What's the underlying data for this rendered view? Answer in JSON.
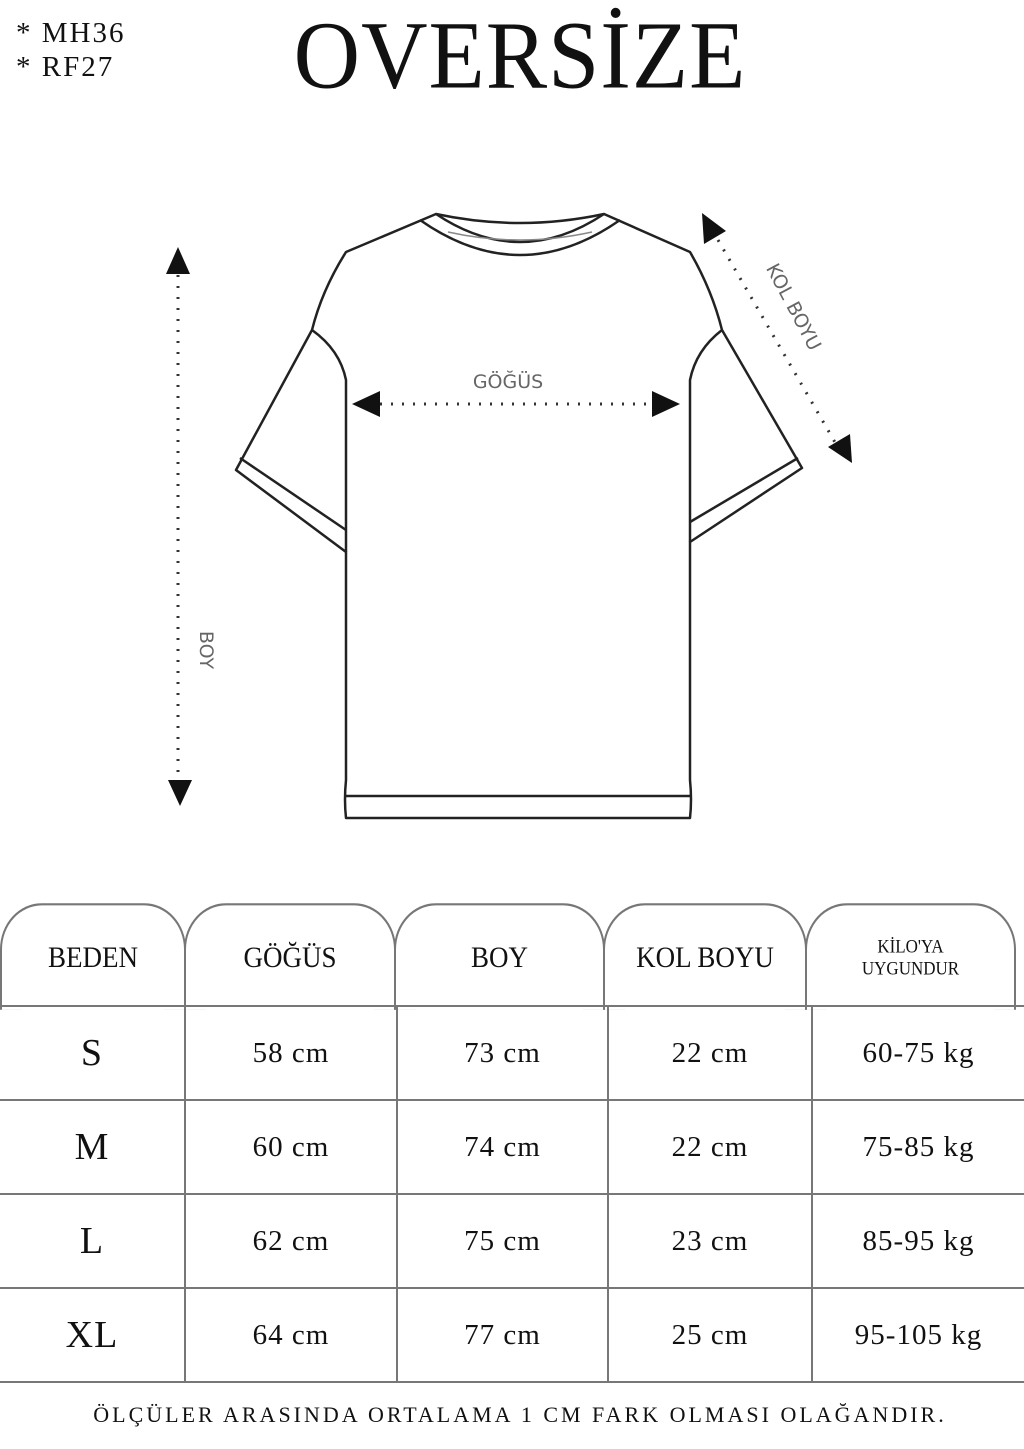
{
  "codes": [
    "* MH36",
    "* RF27"
  ],
  "title": "OVERSİZE",
  "diagram": {
    "chest_label": "GÖĞÜS",
    "length_label": "BOY",
    "sleeve_label": "KOL BOYU"
  },
  "table": {
    "headers": [
      "BEDEN",
      "GÖĞÜS",
      "BOY",
      "KOL BOYU",
      "KİLO'YA UYGUNDUR"
    ],
    "header_weight_lines": [
      "KİLO'YA",
      "UYGUNDUR"
    ],
    "rows": [
      [
        "S",
        "58 cm",
        "73 cm",
        "22  cm",
        "60-75 kg"
      ],
      [
        "M",
        "60 cm",
        "74 cm",
        "22 cm",
        "75-85 kg"
      ],
      [
        "L",
        "62 cm",
        "75 cm",
        "23 cm",
        "85-95 kg"
      ],
      [
        "XL",
        "64 cm",
        "77 cm",
        "25 cm",
        "95-105 kg"
      ]
    ]
  },
  "footer": "ÖLÇÜLER ARASINDA ORTALAMA 1 CM FARK OLMASI OLAĞANDIR."
}
